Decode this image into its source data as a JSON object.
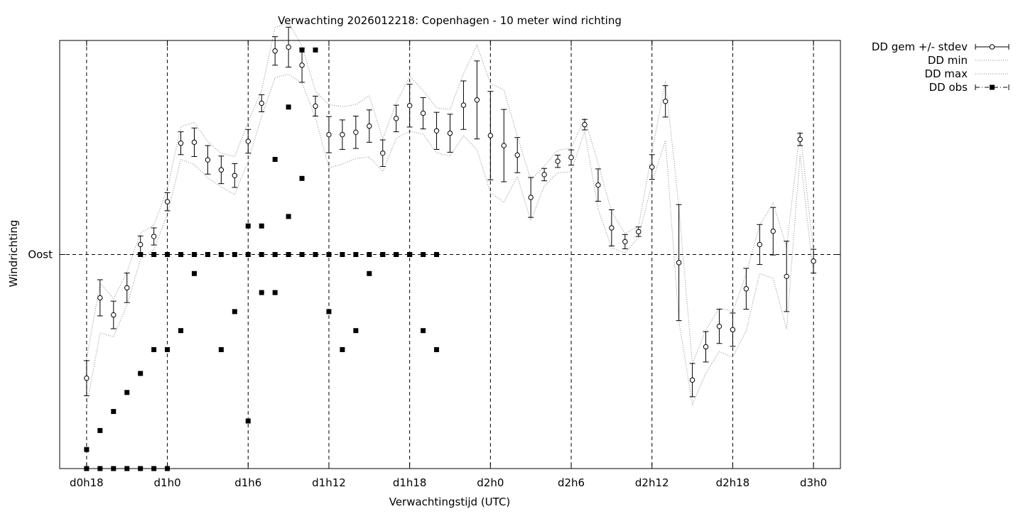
{
  "chart_data": {
    "type": "scatter",
    "title": "Verwachting 2026012218: Copenhagen - 10 meter wind richting",
    "xlabel": "Verwachtingstijd (UTC)",
    "ylabel": "Windrichting",
    "x_unit": "hours since d0h18",
    "xlim": [
      -2,
      56
    ],
    "ylim": [
      45,
      135
    ],
    "xticks": [
      {
        "x": 0,
        "label": "d0h18"
      },
      {
        "x": 6,
        "label": "d1h0"
      },
      {
        "x": 12,
        "label": "d1h6"
      },
      {
        "x": 18,
        "label": "d1h12"
      },
      {
        "x": 24,
        "label": "d1h18"
      },
      {
        "x": 30,
        "label": "d2h0"
      },
      {
        "x": 36,
        "label": "d2h6"
      },
      {
        "x": 42,
        "label": "d2h12"
      },
      {
        "x": 48,
        "label": "d2h18"
      },
      {
        "x": 54,
        "label": "d3h0"
      }
    ],
    "yticks": [
      {
        "y": 90,
        "label": "Oost"
      }
    ],
    "grid": true,
    "legend_position": "outside-top-right",
    "legend": [
      {
        "label": "DD gem +/- stdev",
        "style": "errorbar-open-circle"
      },
      {
        "label": "DD min",
        "style": "dotted"
      },
      {
        "label": "DD max",
        "style": "dotted"
      },
      {
        "label": "DD obs",
        "style": "filled-square"
      }
    ],
    "series": [
      {
        "name": "DD gem +/- stdev",
        "x": [
          0,
          1,
          2,
          3,
          4,
          5,
          6,
          7,
          8,
          9,
          10,
          11,
          12,
          13,
          14,
          15,
          16,
          17,
          18,
          19,
          20,
          21,
          22,
          23,
          24,
          25,
          26,
          27,
          28,
          29,
          30,
          31,
          32,
          33,
          34,
          35,
          36,
          37,
          38,
          39,
          40,
          41,
          42,
          43,
          44,
          45,
          46,
          47,
          48,
          49,
          50,
          51,
          52,
          53,
          54
        ],
        "mean": [
          64,
          80.9,
          77.3,
          83,
          92.1,
          93.8,
          101.1,
          113.4,
          113.6,
          109.9,
          107.8,
          106.6,
          113.8,
          121.8,
          132.8,
          133.6,
          129.8,
          121.2,
          115.2,
          115.2,
          115.7,
          117.0,
          111.3,
          118.6,
          121.3,
          119.7,
          116.0,
          115.5,
          121.4,
          122.5,
          115.0,
          112.9,
          110.9,
          102.0,
          106.8,
          109.6,
          110.4,
          117.3,
          104.6,
          95.6,
          92.7,
          94.8,
          108.4,
          122.2,
          88.3,
          63.6,
          70.6,
          74.9,
          74.2,
          82.8,
          92.1,
          94.9,
          85.4,
          114.2,
          88.6
        ],
        "sd": [
          3.7,
          3.8,
          2.9,
          3.1,
          1.8,
          1.8,
          1.9,
          2.4,
          3.0,
          3.0,
          2.9,
          2.5,
          2.5,
          1.8,
          3.0,
          4.2,
          3.6,
          2.1,
          3.8,
          3.1,
          3.4,
          3.4,
          2.8,
          2.8,
          4.5,
          3.3,
          3.9,
          4.0,
          5.1,
          8.2,
          9.3,
          7.6,
          3.7,
          4.2,
          1.3,
          1.3,
          1.6,
          1.1,
          3.4,
          3.8,
          1.5,
          1.0,
          2.6,
          3.3,
          12.2,
          3.5,
          3.2,
          3.6,
          3.5,
          4.3,
          4.2,
          5.0,
          7.4,
          1.3,
          2.5
        ]
      },
      {
        "name": "DD min",
        "x": [
          0,
          1,
          2,
          3,
          4,
          5,
          6,
          7,
          8,
          9,
          10,
          11,
          12,
          13,
          14,
          15,
          16,
          17,
          18,
          19,
          20,
          21,
          22,
          23,
          24,
          25,
          26,
          27,
          28,
          29,
          30,
          31,
          32,
          33,
          34,
          35,
          36,
          37,
          38,
          39,
          40,
          41,
          42,
          43,
          44,
          45,
          46,
          47,
          48,
          49,
          50,
          51,
          52,
          53,
          54
        ],
        "values": [
          58,
          73.5,
          72.7,
          79.4,
          88.9,
          91.1,
          98.4,
          110.0,
          108.9,
          106.1,
          104.2,
          102.6,
          109.6,
          119.0,
          127.2,
          127.9,
          126.0,
          118.8,
          108.2,
          109.0,
          110.2,
          110.5,
          107.5,
          114.4,
          116.0,
          115.3,
          111.4,
          110.7,
          115.0,
          112.0,
          103.0,
          101.0,
          106.4,
          97.1,
          104.4,
          107.2,
          107.4,
          116.0,
          99.6,
          91.4,
          90.3,
          93.6,
          105.0,
          114.0,
          76.0,
          58.5,
          65.0,
          69.6,
          68.4,
          74.0,
          86.0,
          85.0,
          74.3,
          111.0,
          85.7
        ]
      },
      {
        "name": "DD max",
        "x": [
          0,
          1,
          2,
          3,
          4,
          5,
          6,
          7,
          8,
          9,
          10,
          11,
          12,
          13,
          14,
          15,
          16,
          17,
          18,
          19,
          20,
          21,
          22,
          23,
          24,
          25,
          26,
          27,
          28,
          29,
          30,
          31,
          32,
          33,
          34,
          35,
          36,
          37,
          38,
          39,
          40,
          41,
          42,
          43,
          44,
          45,
          46,
          47,
          48,
          49,
          50,
          51,
          52,
          53,
          54
        ],
        "values": [
          68,
          84,
          80.7,
          86.3,
          94.5,
          96.2,
          103.8,
          116.9,
          117.8,
          113.7,
          111.3,
          110.6,
          117.8,
          124.5,
          137.7,
          138.8,
          133.8,
          124.4,
          121.5,
          121.1,
          121.5,
          123.4,
          114.3,
          121.8,
          127.5,
          124.5,
          120.8,
          120.5,
          128.0,
          134.0,
          126.0,
          124.6,
          114.9,
          105.7,
          108.6,
          111.9,
          112.4,
          118.7,
          109.1,
          99.0,
          94.4,
          95.9,
          111.5,
          126.5,
          100.0,
          67.0,
          74.1,
          78.8,
          78.0,
          86.0,
          96.2,
          100.8,
          91.5,
          116.0,
          90.8
        ]
      },
      {
        "name": "DD obs",
        "x": [
          0,
          1,
          2,
          3,
          4,
          5,
          6,
          0,
          1,
          2,
          3,
          4,
          5,
          6,
          7,
          8,
          9,
          10,
          11,
          12,
          13,
          14,
          15,
          16,
          17,
          18,
          19,
          20,
          21,
          22,
          23,
          24,
          25,
          26,
          4,
          5,
          6,
          7,
          8,
          9,
          10,
          11,
          12,
          13,
          14,
          15,
          16,
          17,
          18,
          19,
          20,
          21,
          22,
          23,
          24,
          25,
          26,
          12,
          13,
          14,
          15,
          16
        ],
        "values": [
          45,
          45,
          45,
          45,
          45,
          45,
          45,
          49,
          53,
          57,
          61,
          65,
          70,
          70,
          74,
          86,
          90,
          70,
          78,
          96,
          96,
          110,
          121,
          133,
          133,
          78,
          70,
          74,
          86,
          90,
          90,
          90,
          74,
          70,
          90,
          90,
          90,
          90,
          90,
          90,
          90,
          90,
          90,
          90,
          90,
          90,
          90,
          90,
          90,
          90,
          90,
          90,
          90,
          90,
          90,
          90,
          90,
          55,
          82,
          82,
          98,
          106
        ]
      }
    ]
  }
}
